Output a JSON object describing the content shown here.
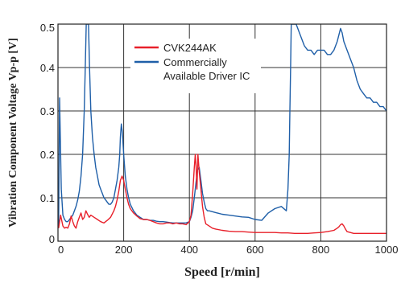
{
  "chart_data": {
    "type": "line",
    "title": "",
    "xlabel": "Speed [r/min]",
    "ylabel": "Vibration Component Voltage Vp-p [V]",
    "xlim": [
      0,
      1000
    ],
    "ylim": [
      0,
      0.5
    ],
    "x_ticks": [
      0,
      200,
      400,
      600,
      800,
      1000
    ],
    "y_ticks": [
      0,
      0.1,
      0.2,
      0.3,
      0.4,
      0.5
    ],
    "x_tick_labels": [
      "0",
      "200",
      "400",
      "600",
      "800",
      "1000"
    ],
    "y_tick_labels": [
      "0",
      "0.1",
      "0.2",
      "0.3",
      "0.4",
      "0.5"
    ],
    "grid": true,
    "legend": {
      "placement": "top-center",
      "entries": [
        {
          "lines": [
            "CVK244AK"
          ],
          "color": "#e8202a"
        },
        {
          "lines": [
            "Commercially",
            "Available Driver IC"
          ],
          "color": "#1f5fa8"
        }
      ]
    },
    "series": [
      {
        "name": "CVK244AK",
        "color": "#e8202a",
        "x": [
          2,
          8,
          15,
          20,
          25,
          30,
          35,
          40,
          45,
          50,
          55,
          60,
          65,
          70,
          75,
          80,
          85,
          90,
          95,
          100,
          110,
          120,
          130,
          140,
          150,
          160,
          170,
          175,
          180,
          185,
          190,
          195,
          200,
          205,
          210,
          215,
          220,
          230,
          240,
          250,
          260,
          270,
          280,
          290,
          300,
          310,
          320,
          330,
          340,
          350,
          360,
          370,
          380,
          390,
          400,
          405,
          410,
          415,
          418,
          420,
          423,
          426,
          430,
          435,
          440,
          445,
          450,
          460,
          470,
          480,
          500,
          520,
          540,
          560,
          580,
          600,
          620,
          640,
          660,
          680,
          700,
          720,
          740,
          760,
          780,
          800,
          820,
          840,
          850,
          855,
          860,
          865,
          870,
          875,
          880,
          890,
          900,
          920,
          940,
          960,
          980,
          1000
        ],
        "y": [
          0.03,
          0.06,
          0.035,
          0.03,
          0.032,
          0.03,
          0.04,
          0.058,
          0.045,
          0.035,
          0.03,
          0.045,
          0.055,
          0.065,
          0.05,
          0.055,
          0.07,
          0.062,
          0.055,
          0.06,
          0.055,
          0.05,
          0.045,
          0.042,
          0.048,
          0.055,
          0.07,
          0.08,
          0.095,
          0.115,
          0.14,
          0.15,
          0.14,
          0.12,
          0.1,
          0.085,
          0.075,
          0.065,
          0.058,
          0.052,
          0.05,
          0.05,
          0.048,
          0.045,
          0.042,
          0.04,
          0.04,
          0.042,
          0.042,
          0.04,
          0.042,
          0.04,
          0.04,
          0.038,
          0.045,
          0.06,
          0.11,
          0.17,
          0.2,
          0.175,
          0.12,
          0.2,
          0.16,
          0.12,
          0.08,
          0.055,
          0.04,
          0.035,
          0.03,
          0.028,
          0.025,
          0.023,
          0.022,
          0.022,
          0.021,
          0.02,
          0.02,
          0.02,
          0.02,
          0.019,
          0.019,
          0.018,
          0.018,
          0.018,
          0.019,
          0.02,
          0.022,
          0.025,
          0.03,
          0.033,
          0.038,
          0.04,
          0.035,
          0.028,
          0.022,
          0.02,
          0.018,
          0.018,
          0.018,
          0.018,
          0.018,
          0.018
        ]
      },
      {
        "name": "Commercially Available Driver IC",
        "color": "#1f5fa8",
        "x": [
          2,
          5,
          10,
          15,
          20,
          25,
          30,
          35,
          40,
          45,
          50,
          55,
          60,
          65,
          70,
          75,
          80,
          83,
          86,
          88,
          90,
          93,
          96,
          100,
          105,
          110,
          115,
          120,
          125,
          130,
          135,
          140,
          145,
          150,
          155,
          160,
          165,
          170,
          175,
          180,
          185,
          188,
          190,
          193,
          196,
          200,
          205,
          210,
          215,
          220,
          230,
          240,
          250,
          260,
          270,
          280,
          290,
          300,
          310,
          320,
          330,
          340,
          350,
          360,
          370,
          380,
          390,
          400,
          405,
          410,
          415,
          420,
          425,
          430,
          435,
          440,
          445,
          450,
          455,
          460,
          470,
          480,
          490,
          500,
          520,
          540,
          560,
          580,
          600,
          620,
          640,
          660,
          680,
          695,
          700,
          702,
          704,
          706,
          708,
          710,
          712,
          714,
          716,
          718,
          720,
          722,
          725,
          730,
          740,
          750,
          760,
          770,
          780,
          790,
          800,
          810,
          820,
          830,
          840,
          850,
          860,
          865,
          870,
          875,
          880,
          890,
          900,
          910,
          920,
          930,
          940,
          950,
          960,
          970,
          980,
          990,
          1000
        ],
        "y": [
          0.03,
          0.33,
          0.12,
          0.06,
          0.05,
          0.045,
          0.045,
          0.05,
          0.055,
          0.06,
          0.07,
          0.08,
          0.095,
          0.115,
          0.15,
          0.2,
          0.3,
          0.4,
          0.5,
          0.5,
          0.5,
          0.5,
          0.4,
          0.3,
          0.24,
          0.2,
          0.17,
          0.15,
          0.13,
          0.12,
          0.11,
          0.1,
          0.095,
          0.09,
          0.085,
          0.085,
          0.09,
          0.1,
          0.12,
          0.14,
          0.17,
          0.2,
          0.24,
          0.27,
          0.25,
          0.2,
          0.15,
          0.12,
          0.1,
          0.085,
          0.07,
          0.06,
          0.055,
          0.05,
          0.05,
          0.048,
          0.048,
          0.046,
          0.045,
          0.045,
          0.044,
          0.043,
          0.042,
          0.042,
          0.042,
          0.042,
          0.042,
          0.045,
          0.055,
          0.07,
          0.1,
          0.135,
          0.165,
          0.17,
          0.14,
          0.11,
          0.09,
          0.075,
          0.07,
          0.07,
          0.068,
          0.066,
          0.064,
          0.062,
          0.06,
          0.058,
          0.056,
          0.055,
          0.05,
          0.048,
          0.065,
          0.075,
          0.08,
          0.07,
          0.12,
          0.16,
          0.2,
          0.3,
          0.4,
          0.5,
          0.5,
          0.5,
          0.5,
          0.5,
          0.5,
          0.5,
          0.5,
          0.49,
          0.47,
          0.45,
          0.44,
          0.44,
          0.43,
          0.44,
          0.44,
          0.44,
          0.43,
          0.43,
          0.44,
          0.46,
          0.49,
          0.48,
          0.46,
          0.45,
          0.44,
          0.42,
          0.4,
          0.37,
          0.35,
          0.34,
          0.33,
          0.33,
          0.32,
          0.32,
          0.31,
          0.31,
          0.3
        ]
      }
    ]
  }
}
